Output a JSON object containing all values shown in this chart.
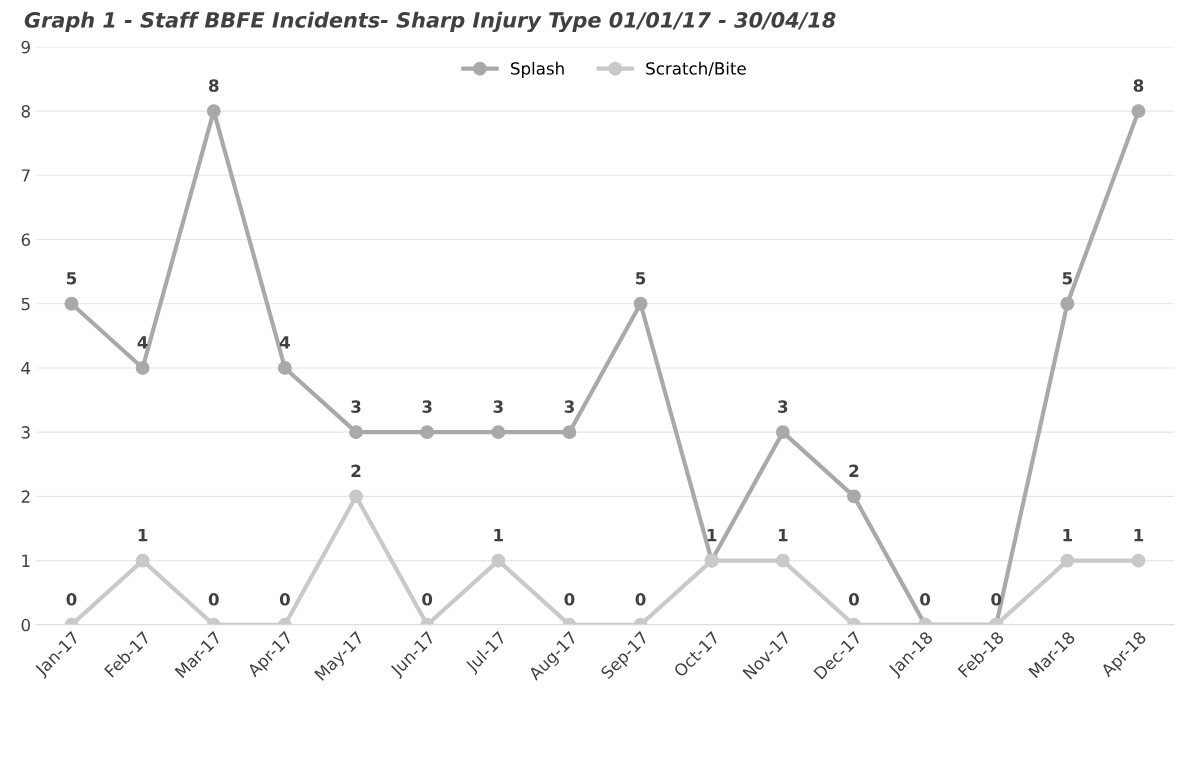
{
  "chart_data": {
    "type": "line",
    "title": "Graph 1 - Staff BBFE Incidents- Sharp Injury Type 01/01/17 - 30/04/18",
    "categories": [
      "Jan-17",
      "Feb-17",
      "Mar-17",
      "Apr-17",
      "May-17",
      "Jun-17",
      "Jul-17",
      "Aug-17",
      "Sep-17",
      "Oct-17",
      "Nov-17",
      "Dec-17",
      "Jan-18",
      "Feb-18",
      "Mar-18",
      "Apr-18"
    ],
    "series": [
      {
        "name": "Splash",
        "color": "#a9a9a9",
        "values": [
          5,
          4,
          8,
          4,
          3,
          3,
          3,
          3,
          5,
          1,
          3,
          2,
          0,
          0,
          5,
          8
        ],
        "value_labels": [
          "5",
          "4",
          "8",
          "4",
          "3",
          "3",
          "3",
          "3",
          "5",
          null,
          "3",
          "2",
          null,
          null,
          "5",
          "8"
        ]
      },
      {
        "name": "Scratch/Bite",
        "color": "#c9c9c9",
        "values": [
          0,
          1,
          0,
          0,
          2,
          0,
          1,
          0,
          0,
          1,
          1,
          0,
          0,
          0,
          1,
          1
        ],
        "value_labels": [
          "0",
          "1",
          "0",
          "0",
          "2",
          "0",
          "1",
          "0",
          "0",
          "1",
          "1",
          "0",
          "0",
          "0",
          "1",
          "1"
        ]
      }
    ],
    "ylim": [
      0,
      9
    ],
    "yticks": [
      0,
      1,
      2,
      3,
      4,
      5,
      6,
      7,
      8,
      9
    ],
    "grid": "y",
    "legend": "top",
    "marker": "circle",
    "line_style": "solid"
  }
}
